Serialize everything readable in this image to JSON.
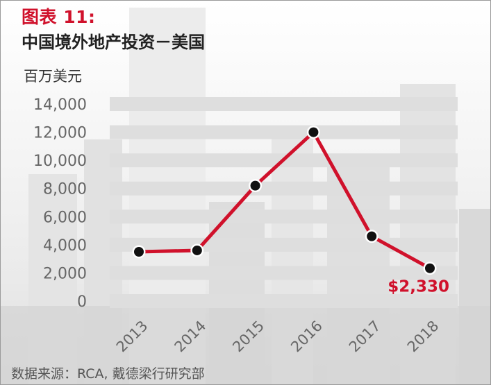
{
  "figure_label": "图表 11:",
  "title": "中国境外地产投资－美国",
  "unit_label": "百万美元",
  "source": "数据来源：RCA, 戴德梁行研究部",
  "colors": {
    "accent_red": "#d0112b",
    "band_gray": "#dedede",
    "point_black": "#111111"
  },
  "chart_data": {
    "type": "line",
    "title": "中国境外地产投资－美国",
    "ylabel": "百万美元",
    "xlabel": "",
    "x": [
      "2013",
      "2014",
      "2015",
      "2016",
      "2017",
      "2018"
    ],
    "series": [
      {
        "values": [
          3500,
          3600,
          8200,
          12000,
          4600,
          2330
        ]
      }
    ],
    "ylim": [
      0,
      14000
    ],
    "yticks": [
      "0",
      "2,000",
      "4,000",
      "6,000",
      "8,000",
      "10,000",
      "12,000",
      "14,000"
    ],
    "data_labels": [
      {
        "x": "2018",
        "text": "$2,330"
      }
    ],
    "grid": true
  }
}
